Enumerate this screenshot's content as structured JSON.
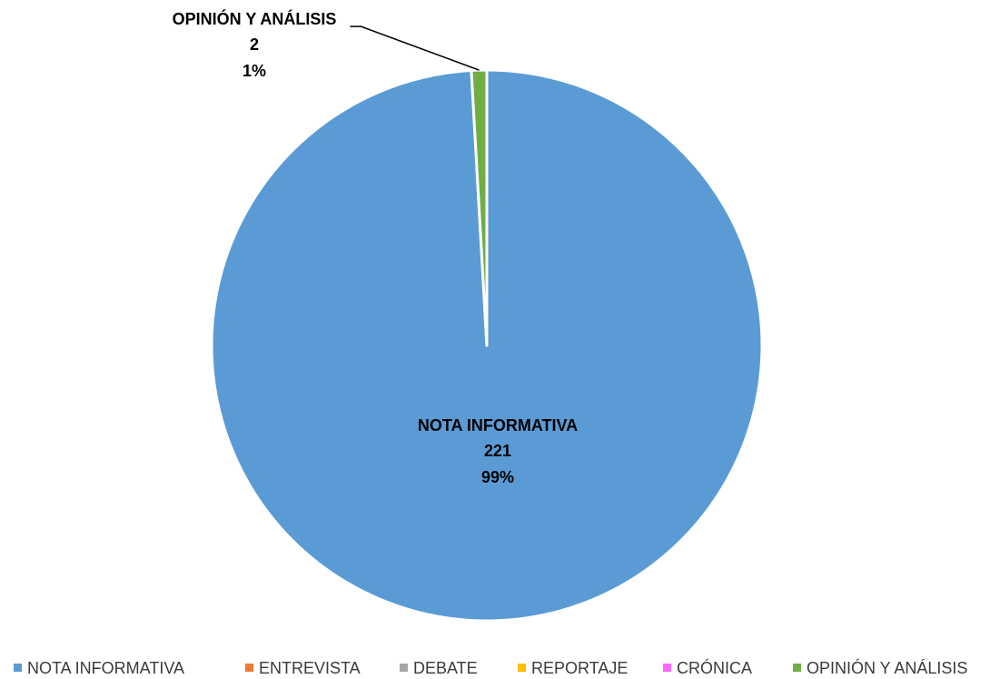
{
  "chart_data": {
    "type": "pie",
    "categories": [
      "NOTA INFORMATIVA",
      "ENTREVISTA",
      "DEBATE",
      "REPORTAJE",
      "CRÓNICA",
      "OPINIÓN Y ANÁLISIS"
    ],
    "values": [
      221,
      0,
      0,
      0,
      0,
      2
    ],
    "percent_labels": [
      "99%",
      "",
      "",
      "",
      "",
      "1%"
    ],
    "value_labels": [
      "221",
      "",
      "",
      "",
      "",
      "2"
    ],
    "colors": [
      "#5b9bd5",
      "#ed7d31",
      "#a5a5a5",
      "#ffc000",
      "#ff66ff",
      "#70ad47"
    ],
    "legend_position": "bottom",
    "start_angle_deg": 0,
    "direction": "clockwise"
  }
}
